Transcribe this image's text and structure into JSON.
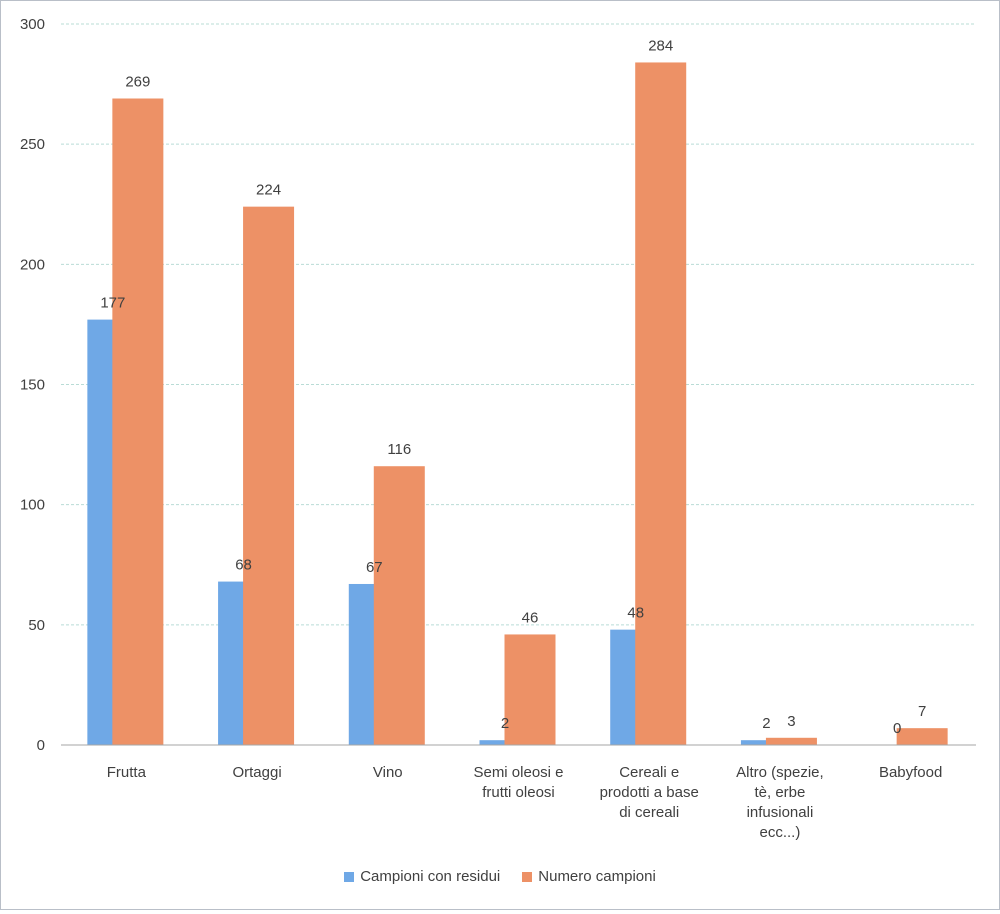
{
  "chart_data": {
    "type": "bar",
    "categories": [
      [
        "Frutta"
      ],
      [
        "Ortaggi"
      ],
      [
        "Vino"
      ],
      [
        "Semi oleosi e",
        "frutti oleosi"
      ],
      [
        "Cereali e",
        "prodotti a base",
        "di cereali"
      ],
      [
        "Altro (spezie,",
        "tè, erbe",
        "infusionali",
        "ecc...)"
      ],
      [
        "Babyfood"
      ]
    ],
    "series": [
      {
        "name": "Campioni con residui",
        "values": [
          177,
          68,
          67,
          2,
          48,
          2,
          0
        ],
        "color": "#6fa8e6"
      },
      {
        "name": "Numero campioni",
        "values": [
          269,
          224,
          116,
          46,
          284,
          3,
          7
        ],
        "color": "#ed9166"
      }
    ],
    "ylim": [
      0,
      300
    ],
    "yticks": [
      0,
      50,
      100,
      150,
      200,
      250,
      300
    ],
    "grid": true,
    "legend_position": "bottom",
    "xlabel": "",
    "ylabel": "",
    "title": ""
  }
}
